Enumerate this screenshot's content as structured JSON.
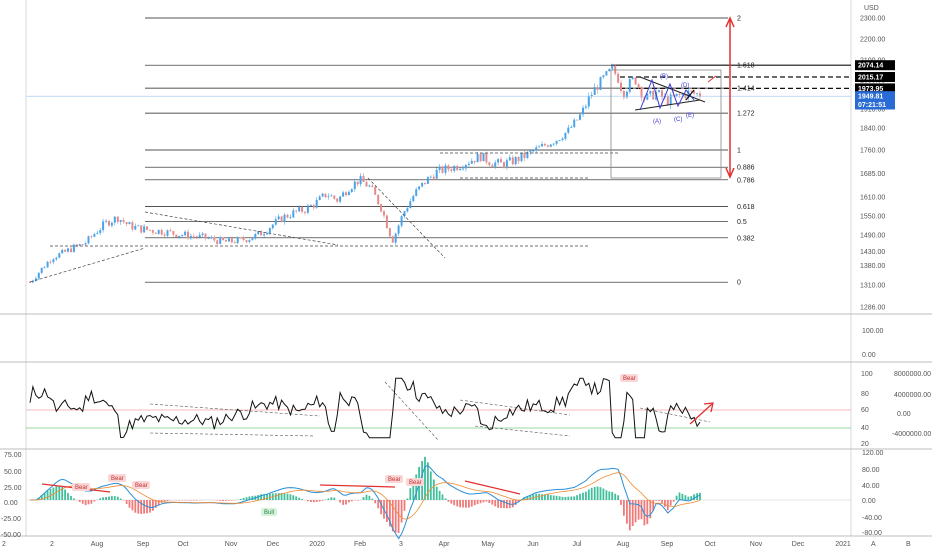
{
  "currency": "USD",
  "corner_labels": {
    "left": "2",
    "log": "A",
    "auto": "B"
  },
  "chart_data": {
    "type": "candlestick",
    "x_ticks": [
      "2",
      "Aug",
      "Sep",
      "Oct",
      "Nov",
      "Dec",
      "2020",
      "Feb",
      "3",
      "Apr",
      "May",
      "Jun",
      "Jul",
      "Aug",
      "Sep",
      "Oct",
      "Nov",
      "Dec",
      "2021"
    ],
    "price_axis": {
      "ticks": [
        1286.0,
        1310.0,
        1380.0,
        1430.0,
        1490.0,
        1550.0,
        1610.0,
        1685.0,
        1760.0,
        1840.0,
        1910.0,
        2000.0,
        2100.0,
        2200.0,
        2300.0
      ],
      "ylim": [
        1280,
        2320
      ]
    },
    "price_labels": [
      {
        "value": 2074.14,
        "text": "2074.14",
        "color": "#000000"
      },
      {
        "value": 2015.17,
        "text": "2015.17",
        "color": "#000000"
      },
      {
        "value": 1973.95,
        "text": "1973.95",
        "color": "#000000"
      },
      {
        "value": 1949.81,
        "text": "1949.81",
        "color": "#2a6cd6"
      },
      {
        "value": 1924.0,
        "text": "07:21:51",
        "color": "#2a6cd6"
      }
    ],
    "fib_levels": [
      {
        "label": "2",
        "value": 2300
      },
      {
        "label": "1.618",
        "value": 2074
      },
      {
        "label": "1.414",
        "value": 1975
      },
      {
        "label": "1.272",
        "value": 1895
      },
      {
        "label": "1",
        "value": 1760
      },
      {
        "label": "0.886",
        "value": 1705
      },
      {
        "label": "0.786",
        "value": 1665
      },
      {
        "label": "0.618",
        "value": 1580
      },
      {
        "label": "0.5",
        "value": 1532
      },
      {
        "label": "0.382",
        "value": 1480
      },
      {
        "label": "0",
        "value": 1320
      }
    ],
    "close_series": [
      1320,
      1365,
      1410,
      1425,
      1445,
      1460,
      1500,
      1530,
      1545,
      1520,
      1510,
      1505,
      1502,
      1495,
      1490,
      1485,
      1480,
      1470,
      1465,
      1470,
      1478,
      1495,
      1520,
      1545,
      1560,
      1570,
      1590,
      1620,
      1600,
      1640,
      1665,
      1640,
      1575,
      1470,
      1560,
      1620,
      1660,
      1690,
      1700,
      1710,
      1725,
      1740,
      1720,
      1715,
      1725,
      1740,
      1760,
      1780,
      1800,
      1830,
      1880,
      1950,
      2000,
      2060,
      1960,
      2010,
      1940,
      1960,
      1935,
      1950,
      1960,
      1955
    ],
    "wave_labels": [
      "(B)",
      "(D)",
      "(A)",
      "(C)",
      "(E)"
    ],
    "rsi_axis": {
      "ticks": [
        100.0,
        80.0,
        60.0,
        40.0,
        20.0
      ],
      "ylim": [
        20,
        100
      ]
    },
    "volume_axis": {
      "ticks": [
        8000000,
        4000000,
        0,
        -4000000
      ],
      "tick_text": [
        "8000000.00",
        "4000000.00",
        "0.00",
        "-4000000.00"
      ]
    },
    "upper_pane_axis": {
      "ticks": [
        100.0,
        0.0
      ],
      "tick_text": [
        "100.00",
        "0.00"
      ]
    },
    "macd_axis": {
      "left_ticks": [
        "75.00",
        "50.00",
        "25.00",
        "0.00",
        "-25.00",
        "-50.00"
      ],
      "right_ticks": [
        "120.00",
        "80.00",
        "40.00",
        "0.00",
        "-40.00",
        "-80.00"
      ]
    },
    "divergence_tags": [
      "Bear",
      "Bear",
      "Bear",
      "Bear",
      "Bear",
      "Bear",
      "Bull"
    ]
  }
}
